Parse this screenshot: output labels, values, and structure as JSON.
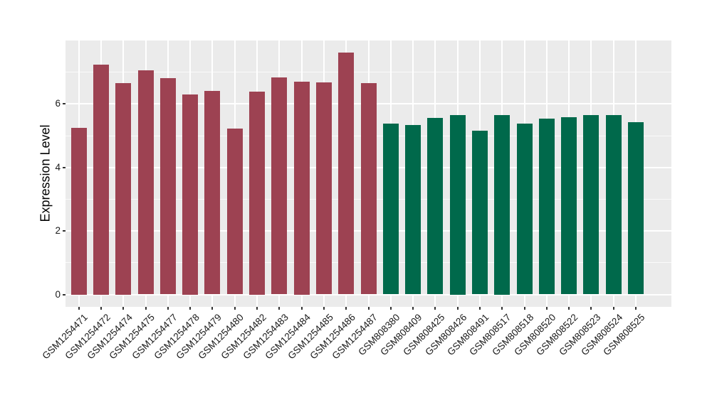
{
  "chart_data": {
    "type": "bar",
    "title": "",
    "xlabel": "",
    "ylabel": "Expression Level",
    "ylim": [
      0,
      8
    ],
    "yticks": [
      0,
      2,
      4,
      6
    ],
    "yticks_minor": [
      1,
      3,
      5,
      7
    ],
    "grid": "on",
    "legend": "none",
    "panel_background": "#EBEBEB",
    "grid_color": "#FFFFFF",
    "group_colors": {
      "GSM1254xxx": "#9D4252",
      "GSM808xxx": "#00694B"
    },
    "bars": [
      {
        "label": "GSM1254471",
        "value": 5.25,
        "group": "GSM1254xxx"
      },
      {
        "label": "GSM1254472",
        "value": 7.25,
        "group": "GSM1254xxx"
      },
      {
        "label": "GSM1254474",
        "value": 6.65,
        "group": "GSM1254xxx"
      },
      {
        "label": "GSM1254475",
        "value": 7.07,
        "group": "GSM1254xxx"
      },
      {
        "label": "GSM1254477",
        "value": 6.82,
        "group": "GSM1254xxx"
      },
      {
        "label": "GSM1254478",
        "value": 6.3,
        "group": "GSM1254xxx"
      },
      {
        "label": "GSM1254479",
        "value": 6.41,
        "group": "GSM1254xxx"
      },
      {
        "label": "GSM1254480",
        "value": 5.23,
        "group": "GSM1254xxx"
      },
      {
        "label": "GSM1254482",
        "value": 6.4,
        "group": "GSM1254xxx"
      },
      {
        "label": "GSM1254483",
        "value": 6.83,
        "group": "GSM1254xxx"
      },
      {
        "label": "GSM1254484",
        "value": 6.7,
        "group": "GSM1254xxx"
      },
      {
        "label": "GSM1254485",
        "value": 6.68,
        "group": "GSM1254xxx"
      },
      {
        "label": "GSM1254486",
        "value": 7.61,
        "group": "GSM1254xxx"
      },
      {
        "label": "GSM1254487",
        "value": 6.66,
        "group": "GSM1254xxx"
      },
      {
        "label": "GSM808380",
        "value": 5.39,
        "group": "GSM808xxx"
      },
      {
        "label": "GSM808409",
        "value": 5.34,
        "group": "GSM808xxx"
      },
      {
        "label": "GSM808425",
        "value": 5.56,
        "group": "GSM808xxx"
      },
      {
        "label": "GSM808426",
        "value": 5.65,
        "group": "GSM808xxx"
      },
      {
        "label": "GSM808491",
        "value": 5.16,
        "group": "GSM808xxx"
      },
      {
        "label": "GSM808517",
        "value": 5.65,
        "group": "GSM808xxx"
      },
      {
        "label": "GSM808518",
        "value": 5.38,
        "group": "GSM808xxx"
      },
      {
        "label": "GSM808520",
        "value": 5.53,
        "group": "GSM808xxx"
      },
      {
        "label": "GSM808522",
        "value": 5.59,
        "group": "GSM808xxx"
      },
      {
        "label": "GSM808523",
        "value": 5.66,
        "group": "GSM808xxx"
      },
      {
        "label": "GSM808524",
        "value": 5.64,
        "group": "GSM808xxx"
      },
      {
        "label": "GSM808525",
        "value": 5.42,
        "group": "GSM808xxx"
      }
    ]
  }
}
